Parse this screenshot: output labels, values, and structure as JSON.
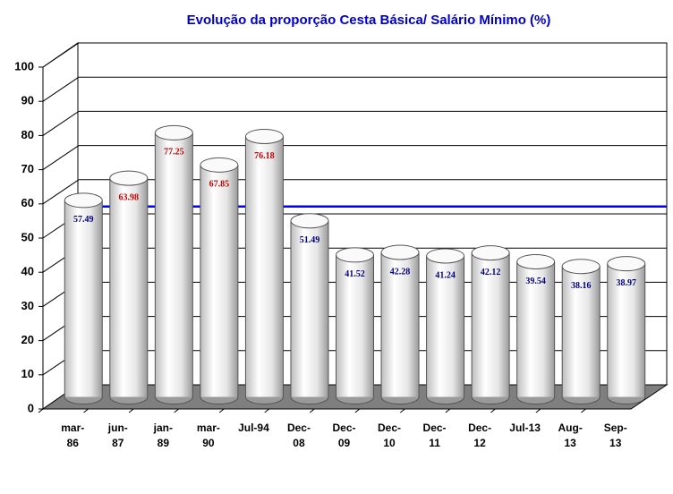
{
  "chart_data": {
    "type": "bar3d-cylinder",
    "title": "Evolução da proporção Cesta Básica/ Salário Mínimo (%)",
    "categories": [
      "mar-\n86",
      "jun-\n87",
      "jan-\n89",
      "mar-\n90",
      "Jul-94",
      "Dec-\n08",
      "Dec-\n09",
      "Dec-\n10",
      "Dec-\n11",
      "Dec-\n12",
      "Jul-13",
      "Aug-\n13",
      "Sep-\n13"
    ],
    "values": [
      57.49,
      63.98,
      77.25,
      67.85,
      76.18,
      51.49,
      41.52,
      42.28,
      41.24,
      42.12,
      39.54,
      38.16,
      38.97
    ],
    "value_label_colors": [
      "#00007f",
      "#c00000",
      "#c00000",
      "#c00000",
      "#c00000",
      "#00007f",
      "#00007f",
      "#00007f",
      "#00007f",
      "#00007f",
      "#00007f",
      "#00007f",
      "#00007f"
    ],
    "reference_line": {
      "value": 52.16,
      "color": "#0000ff"
    },
    "ylim": [
      0,
      100
    ],
    "yticks": [
      0,
      10,
      20,
      30,
      40,
      50,
      60,
      70,
      80,
      90,
      100
    ],
    "grid": true
  }
}
